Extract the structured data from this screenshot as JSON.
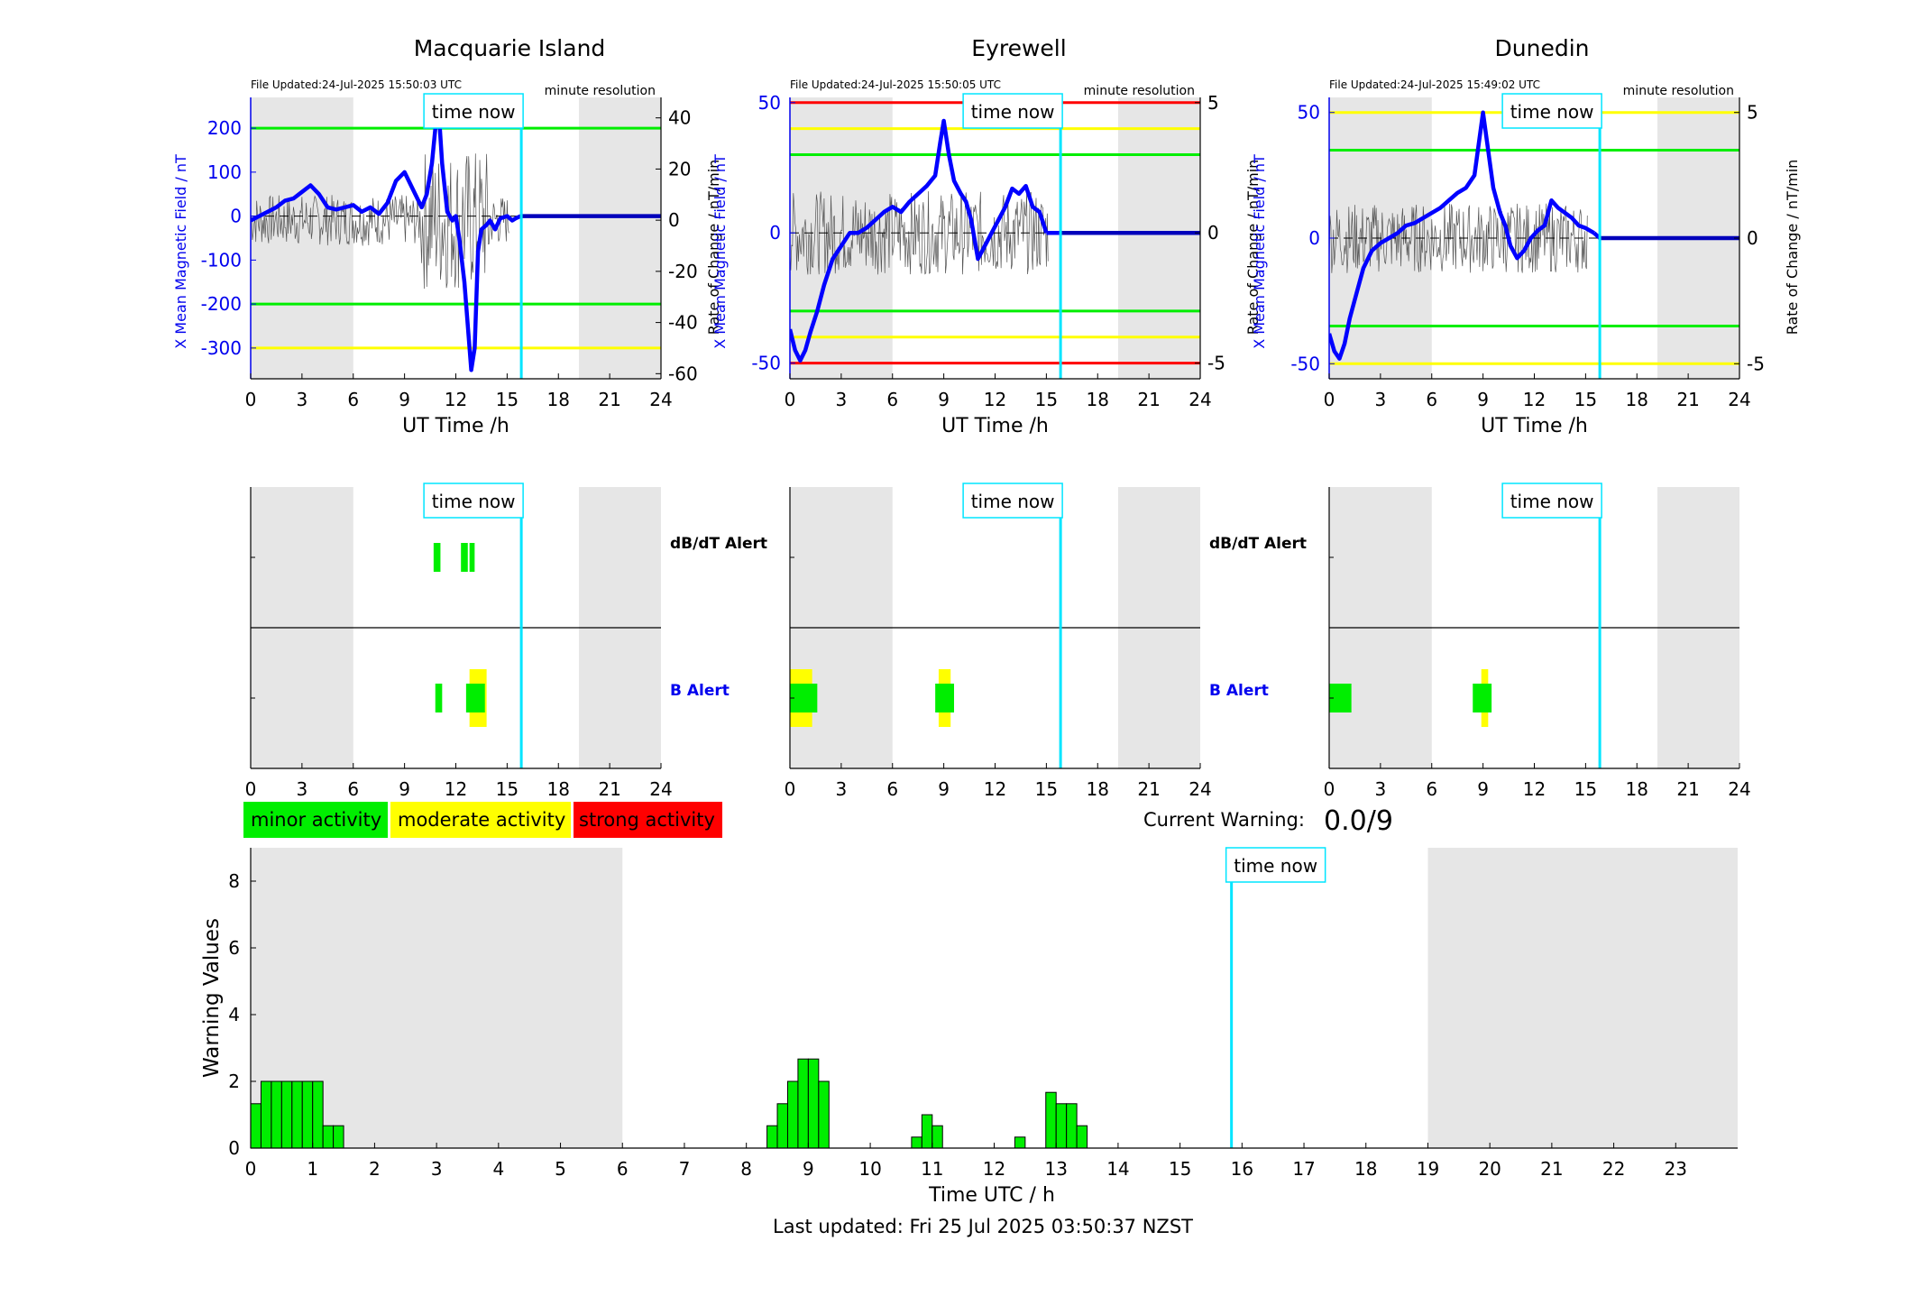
{
  "colors": {
    "axis_blue": "#0000ee",
    "trace_blue": "#0000ff",
    "noise_gray": "#555555",
    "now_line": "#00e5ff",
    "green": "#00ee00",
    "yellow": "#ffff00",
    "red": "#ff0000",
    "shade": "#e6e6e6"
  },
  "labels": {
    "time_now": "time now",
    "minute_resolution": "minute resolution",
    "x_axis_top": "UT Time /h",
    "dbdt_alert": "dB/dT Alert",
    "b_alert": "B Alert",
    "current_warning_label": "Current Warning:",
    "current_warning_value": "0.0/9",
    "bottom_xlabel": "Time UTC / h",
    "bottom_ylabel": "Warning Values",
    "last_updated": "Last updated: Fri 25 Jul 2025 03:50:37 NZST"
  },
  "legend": [
    {
      "label": "minor activity",
      "color": "#00ee00"
    },
    {
      "label": "moderate activity",
      "color": "#ffff00"
    },
    {
      "label": "strong activity",
      "color": "#ff0000"
    }
  ],
  "chart_data": [
    {
      "type": "line",
      "title": "Macquarie Island",
      "file_updated": "File Updated:24-Jul-2025 15:50:03 UTC",
      "ylabel": "X Mean Magnetic Field / nT",
      "y2label": "Rate of Change / nT/min",
      "xlim": [
        0,
        24
      ],
      "xticks": [
        0,
        3,
        6,
        9,
        12,
        15,
        18,
        21,
        24
      ],
      "ylim": [
        -370,
        270
      ],
      "yticks": [
        -300,
        -200,
        -100,
        0,
        100,
        200
      ],
      "y2lim": [
        -62,
        48
      ],
      "y2ticks": [
        -60,
        -40,
        -20,
        0,
        20,
        40
      ],
      "thresholds": [
        {
          "value": 200,
          "color": "green"
        },
        {
          "value": -200,
          "color": "green"
        },
        {
          "value": -300,
          "color": "yellow"
        }
      ],
      "shaded_ranges": [
        [
          0,
          6
        ],
        [
          19.2,
          24
        ]
      ],
      "now": 15.83,
      "series": [
        {
          "x": [
            0,
            0.5,
            1,
            1.5,
            2,
            2.5,
            3,
            3.5,
            4,
            4.5,
            5,
            5.5,
            6,
            6.5,
            7,
            7.5,
            8,
            8.5,
            9,
            9.5,
            10,
            10.3,
            10.6,
            10.8,
            11,
            11.2,
            11.5,
            11.8,
            12,
            12.2,
            12.5,
            12.7,
            12.9,
            13.1,
            13.3,
            13.5,
            13.8,
            14,
            14.3,
            14.6,
            15,
            15.3,
            15.5,
            15.8
          ],
          "values": [
            -10,
            0,
            10,
            20,
            35,
            40,
            55,
            70,
            50,
            20,
            15,
            20,
            25,
            10,
            20,
            5,
            30,
            80,
            100,
            60,
            20,
            50,
            120,
            200,
            240,
            120,
            10,
            -10,
            0,
            -50,
            -150,
            -250,
            -350,
            -300,
            -80,
            -30,
            -20,
            -10,
            -30,
            -5,
            0,
            -10,
            -5,
            0
          ]
        }
      ],
      "flat_after_now": 0
    },
    {
      "type": "line",
      "title": "Eyrewell",
      "file_updated": "File Updated:24-Jul-2025 15:50:05 UTC",
      "ylabel": "X Mean Magnetic Field / nT",
      "y2label": "Rate of Change / nT/min",
      "xlim": [
        0,
        24
      ],
      "xticks": [
        0,
        3,
        6,
        9,
        12,
        15,
        18,
        21,
        24
      ],
      "ylim": [
        -56,
        52
      ],
      "yticks": [
        -50,
        0,
        50
      ],
      "y2lim": [
        -5.6,
        5.2
      ],
      "y2ticks": [
        -5,
        0,
        5
      ],
      "thresholds": [
        {
          "value": 50,
          "color": "red"
        },
        {
          "value": 40,
          "color": "yellow"
        },
        {
          "value": 30,
          "color": "green"
        },
        {
          "value": -30,
          "color": "green"
        },
        {
          "value": -40,
          "color": "yellow"
        },
        {
          "value": -50,
          "color": "red"
        }
      ],
      "shaded_ranges": [
        [
          0,
          6
        ],
        [
          19.2,
          24
        ]
      ],
      "now": 15.83,
      "series": [
        {
          "x": [
            0,
            0.3,
            0.6,
            0.9,
            1.2,
            1.6,
            2,
            2.5,
            3,
            3.5,
            4,
            4.5,
            5,
            5.5,
            6,
            6.5,
            7,
            7.5,
            8,
            8.5,
            8.8,
            9,
            9.3,
            9.6,
            10,
            10.3,
            10.6,
            11,
            11.4,
            11.8,
            12.2,
            12.6,
            13,
            13.4,
            13.8,
            14.2,
            14.6,
            15
          ],
          "values": [
            -37,
            -45,
            -49,
            -45,
            -38,
            -30,
            -20,
            -10,
            -5,
            0,
            0,
            2,
            5,
            8,
            10,
            8,
            12,
            15,
            18,
            22,
            35,
            43,
            30,
            20,
            15,
            12,
            5,
            -10,
            -5,
            0,
            5,
            10,
            17,
            15,
            18,
            10,
            8,
            0
          ]
        }
      ],
      "flat_after_now": 0
    },
    {
      "type": "line",
      "title": "Dunedin",
      "file_updated": "File Updated:24-Jul-2025 15:49:02 UTC",
      "ylabel": "X Mean Magnetic Field / nT",
      "y2label": "Rate of Change / nT/min",
      "xlim": [
        0,
        24
      ],
      "xticks": [
        0,
        3,
        6,
        9,
        12,
        15,
        18,
        21,
        24
      ],
      "ylim": [
        -56,
        56
      ],
      "yticks": [
        -50,
        0,
        50
      ],
      "y2lim": [
        -5.6,
        5.6
      ],
      "y2ticks": [
        -5,
        0,
        5
      ],
      "thresholds": [
        {
          "value": 50,
          "color": "yellow"
        },
        {
          "value": 35,
          "color": "green"
        },
        {
          "value": -35,
          "color": "green"
        },
        {
          "value": -50,
          "color": "yellow"
        }
      ],
      "shaded_ranges": [
        [
          0,
          6
        ],
        [
          19.2,
          24
        ]
      ],
      "now": 15.83,
      "series": [
        {
          "x": [
            0,
            0.3,
            0.6,
            0.9,
            1.2,
            1.6,
            2,
            2.5,
            3,
            3.5,
            4,
            4.5,
            5,
            5.5,
            6,
            6.5,
            7,
            7.5,
            8,
            8.5,
            8.8,
            9,
            9.3,
            9.6,
            10,
            10.3,
            10.6,
            11,
            11.4,
            11.8,
            12.2,
            12.6,
            13,
            13.4,
            13.8,
            14.2,
            14.6,
            15,
            15.5
          ],
          "values": [
            -38,
            -45,
            -48,
            -42,
            -32,
            -22,
            -12,
            -5,
            -2,
            0,
            2,
            5,
            6,
            8,
            10,
            12,
            15,
            18,
            20,
            25,
            40,
            50,
            35,
            20,
            10,
            5,
            -3,
            -8,
            -5,
            0,
            3,
            5,
            15,
            12,
            10,
            8,
            5,
            4,
            2
          ]
        }
      ],
      "flat_after_now": 0
    },
    {
      "type": "alert",
      "rows": [
        "dB/dT Alert",
        "B Alert"
      ],
      "xlim": [
        0,
        24
      ],
      "xticks": [
        0,
        3,
        6,
        9,
        12,
        15,
        18,
        21,
        24
      ],
      "shaded_ranges": [
        [
          0,
          6
        ],
        [
          19.2,
          24
        ]
      ],
      "now": 15.83,
      "dbdt": [
        {
          "start": 10.7,
          "end": 11.1,
          "level": "minor"
        },
        {
          "start": 12.3,
          "end": 12.7,
          "level": "minor"
        },
        {
          "start": 12.8,
          "end": 13.1,
          "level": "minor"
        }
      ],
      "b": [
        {
          "start": 10.8,
          "end": 11.2,
          "level": "minor"
        },
        {
          "start": 12.8,
          "end": 13.8,
          "level": "moderate"
        },
        {
          "start": 12.6,
          "end": 13.7,
          "level": "minor"
        }
      ]
    },
    {
      "type": "alert",
      "rows": [
        "dB/dT Alert",
        "B Alert"
      ],
      "xlim": [
        0,
        24
      ],
      "xticks": [
        0,
        3,
        6,
        9,
        12,
        15,
        18,
        21,
        24
      ],
      "shaded_ranges": [
        [
          0,
          6
        ],
        [
          19.2,
          24
        ]
      ],
      "now": 15.83,
      "dbdt": [],
      "b": [
        {
          "start": 0,
          "end": 1.3,
          "level": "moderate"
        },
        {
          "start": 0,
          "end": 1.6,
          "level": "minor"
        },
        {
          "start": 8.7,
          "end": 9.4,
          "level": "moderate"
        },
        {
          "start": 8.5,
          "end": 9.6,
          "level": "minor"
        }
      ]
    },
    {
      "type": "alert",
      "rows": [
        "dB/dT Alert",
        "B Alert"
      ],
      "xlim": [
        0,
        24
      ],
      "xticks": [
        0,
        3,
        6,
        9,
        12,
        15,
        18,
        21,
        24
      ],
      "shaded_ranges": [
        [
          0,
          6
        ],
        [
          19.2,
          24
        ]
      ],
      "now": 15.83,
      "dbdt": [],
      "b": [
        {
          "start": 0,
          "end": 1.3,
          "level": "minor"
        },
        {
          "start": 8.9,
          "end": 9.3,
          "level": "moderate"
        },
        {
          "start": 8.4,
          "end": 9.5,
          "level": "minor"
        }
      ]
    },
    {
      "type": "bar",
      "xlabel": "Time UTC / h",
      "ylabel": "Warning Values",
      "xlim": [
        0,
        24
      ],
      "xticks": [
        0,
        1,
        2,
        3,
        4,
        5,
        6,
        7,
        8,
        9,
        10,
        11,
        12,
        13,
        14,
        15,
        16,
        17,
        18,
        19,
        20,
        21,
        22,
        23
      ],
      "ylim": [
        0,
        9
      ],
      "yticks": [
        0,
        2,
        4,
        6,
        8
      ],
      "shaded_ranges": [
        [
          0,
          6
        ],
        [
          19,
          24
        ]
      ],
      "now": 15.83,
      "bin_width": 0.1667,
      "bars": [
        {
          "x": 0,
          "value": 1.33
        },
        {
          "x": 0.1667,
          "value": 2
        },
        {
          "x": 0.3333,
          "value": 2
        },
        {
          "x": 0.5,
          "value": 2
        },
        {
          "x": 0.6667,
          "value": 2
        },
        {
          "x": 0.8333,
          "value": 2
        },
        {
          "x": 1,
          "value": 2
        },
        {
          "x": 1.1667,
          "value": 0.67
        },
        {
          "x": 1.3333,
          "value": 0.67
        },
        {
          "x": 8.3333,
          "value": 0.67
        },
        {
          "x": 8.5,
          "value": 1.33
        },
        {
          "x": 8.6667,
          "value": 2
        },
        {
          "x": 8.8333,
          "value": 2.67
        },
        {
          "x": 9,
          "value": 2.67
        },
        {
          "x": 9.1667,
          "value": 2
        },
        {
          "x": 10.6667,
          "value": 0.33
        },
        {
          "x": 10.8333,
          "value": 1
        },
        {
          "x": 11,
          "value": 0.67
        },
        {
          "x": 12.3333,
          "value": 0.33
        },
        {
          "x": 12.8333,
          "value": 1.67
        },
        {
          "x": 13,
          "value": 1.33
        },
        {
          "x": 13.1667,
          "value": 1.33
        },
        {
          "x": 13.3333,
          "value": 0.67
        }
      ]
    }
  ]
}
